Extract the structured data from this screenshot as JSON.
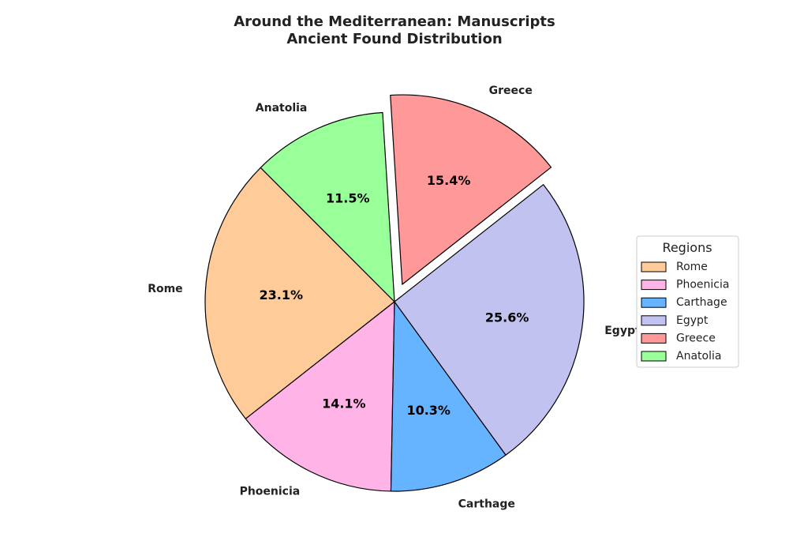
{
  "chart_data": {
    "type": "pie",
    "title_lines": [
      "Around the Mediterranean: Manuscripts",
      "Ancient Found Distribution"
    ],
    "labels": [
      "Rome",
      "Phoenicia",
      "Carthage",
      "Egypt",
      "Greece",
      "Anatolia"
    ],
    "percent_labels": [
      "23.1%",
      "14.1%",
      "10.3%",
      "25.6%",
      "15.4%",
      "11.5%"
    ],
    "values": [
      23.1,
      14.1,
      10.3,
      25.6,
      15.4,
      11.5
    ],
    "colors": [
      "#ffcc99",
      "#ffb3e6",
      "#66b3ff",
      "#c2c2f0",
      "#ff9999",
      "#99ff99"
    ],
    "exploded": [
      "Greece"
    ],
    "start_angle_deg": 135,
    "direction": "counterclockwise",
    "legend": {
      "title": "Regions",
      "placement": "right",
      "entries": [
        "Rome",
        "Phoenicia",
        "Carthage",
        "Egypt",
        "Greece",
        "Anatolia"
      ]
    }
  }
}
